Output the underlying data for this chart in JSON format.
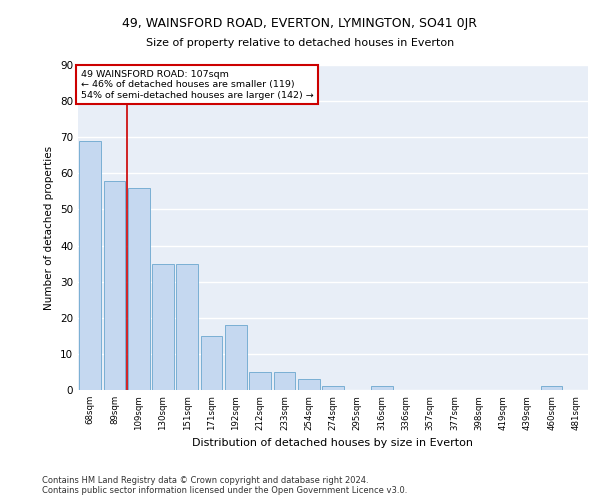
{
  "title1": "49, WAINSFORD ROAD, EVERTON, LYMINGTON, SO41 0JR",
  "title2": "Size of property relative to detached houses in Everton",
  "xlabel": "Distribution of detached houses by size in Everton",
  "ylabel": "Number of detached properties",
  "categories": [
    "68sqm",
    "89sqm",
    "109sqm",
    "130sqm",
    "151sqm",
    "171sqm",
    "192sqm",
    "212sqm",
    "233sqm",
    "254sqm",
    "274sqm",
    "295sqm",
    "316sqm",
    "336sqm",
    "357sqm",
    "377sqm",
    "398sqm",
    "419sqm",
    "439sqm",
    "460sqm",
    "481sqm"
  ],
  "values": [
    69,
    58,
    56,
    35,
    35,
    15,
    18,
    5,
    5,
    3,
    1,
    0,
    1,
    0,
    0,
    0,
    0,
    0,
    0,
    1,
    0
  ],
  "bar_color": "#c5d8f0",
  "bar_edge_color": "#7aafd4",
  "background_color": "#e8eef7",
  "grid_color": "#ffffff",
  "vline_x": 1.5,
  "annotation_text_line1": "49 WAINSFORD ROAD: 107sqm",
  "annotation_text_line2": "← 46% of detached houses are smaller (119)",
  "annotation_text_line3": "54% of semi-detached houses are larger (142) →",
  "annotation_box_color": "#ffffff",
  "annotation_box_edge_color": "#cc0000",
  "vline_color": "#cc0000",
  "ylim": [
    0,
    90
  ],
  "yticks": [
    0,
    10,
    20,
    30,
    40,
    50,
    60,
    70,
    80,
    90
  ],
  "footer_line1": "Contains HM Land Registry data © Crown copyright and database right 2024.",
  "footer_line2": "Contains public sector information licensed under the Open Government Licence v3.0."
}
